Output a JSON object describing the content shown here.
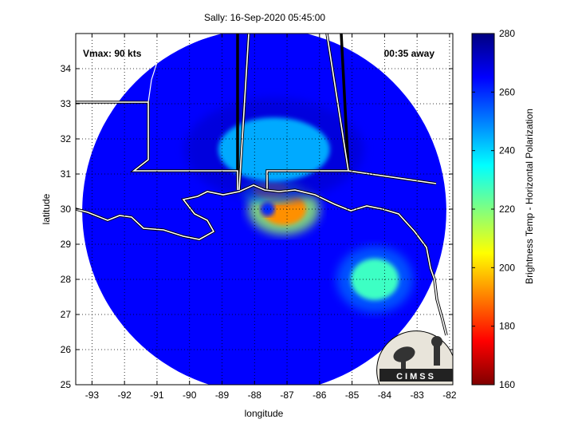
{
  "chart_data": {
    "type": "heatmap",
    "title": "Sally: 16-Sep-2020 05:45:00",
    "xlabel": "longitude",
    "ylabel": "latitude",
    "xlim": [
      -93.5,
      -81.9
    ],
    "ylim": [
      25,
      35
    ],
    "x_ticks": [
      -93,
      -92,
      -91,
      -90,
      -89,
      -88,
      -87,
      -86,
      -85,
      -84,
      -83,
      -82
    ],
    "y_ticks": [
      25,
      26,
      27,
      28,
      29,
      30,
      31,
      32,
      33,
      34
    ],
    "grid": true,
    "annotations": {
      "vmax": "Vmax: 90 kts",
      "time_offset": "00:35 away"
    },
    "colorbar": {
      "label": "Brightness Temp - Horizontal Polarization",
      "range": [
        160,
        280
      ],
      "ticks": [
        160,
        180,
        200,
        220,
        240,
        260,
        280
      ],
      "colormap": "jet"
    },
    "storm_center": {
      "lon": -87.6,
      "lat": 30.0
    },
    "swath": {
      "center_lon": -87.7,
      "center_lat": 29.95,
      "radius_deg": 5.6
    },
    "features": [
      {
        "label": "eyewall",
        "lon": -87.1,
        "lat": 30.0,
        "value": 192
      },
      {
        "label": "inner-rainband-north",
        "lon": -87.5,
        "lat": 30.55,
        "value": 205
      },
      {
        "label": "rainband-north",
        "lon": -87.4,
        "lat": 31.7,
        "value": 245
      },
      {
        "label": "rainband-east",
        "lon": -84.3,
        "lat": 28.0,
        "value": 228
      }
    ],
    "background_value": 265
  },
  "logo": {
    "text": "CIMSS"
  },
  "colors": {
    "coastline": "#ffffff",
    "border": "#000000",
    "grid": "#000000"
  }
}
